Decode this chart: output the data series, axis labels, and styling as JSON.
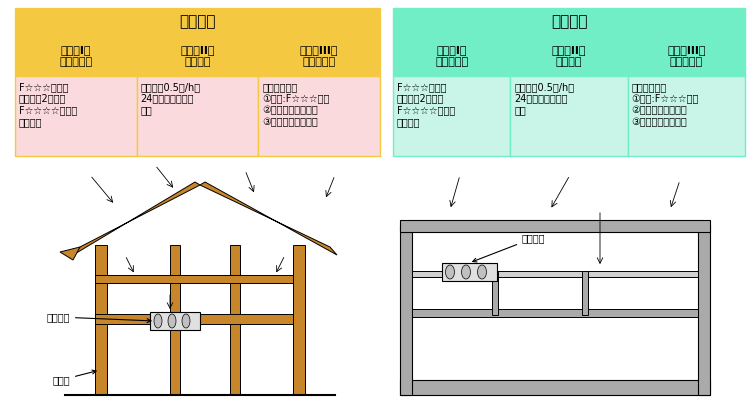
{
  "bg_color": "#ffffff",
  "left_table": {
    "title": "戸建住宅",
    "title_bg": "#F5C842",
    "header_bg": "#F5C842",
    "content_bg": "#FADADD",
    "border_color": "#F5C842",
    "headers": [
      "（対策I）\n内装仕上げ",
      "（対策II）\n換気設備",
      "（対策III）\n天井裏など"
    ],
    "contents": [
      "F☆☆☆の場合\n床面積の2倍まで\nF☆☆☆☆の場合\n制限なし",
      "換気回数0.5回/hの\n24時間換気設備を\n設置",
      "次のいずれか\n①建材:F☆☆☆以上\n②気密層、通気止め\n③天井裏などを換気"
    ]
  },
  "right_table": {
    "title": "集合住宅",
    "title_bg": "#72EEC7",
    "header_bg": "#72EEC7",
    "content_bg": "#C8F5E8",
    "border_color": "#72EEC7",
    "headers": [
      "（対策I）\n内装仕上げ",
      "（対策II）\n換気設備",
      "（対策III）\n天井裏など"
    ],
    "contents": [
      "F☆☆☆の場合\n床面積の2倍まで\nF☆☆☆☆の場合\n制限なし",
      "換気回数0.5回/hの\n24時間換気設備を\n設置",
      "次のいずれか\n①建材:F☆☆☆以上\n②気密層、通気止め\n③天井裏などを換気"
    ]
  },
  "wood_color": "#C8862A",
  "wall_color": "#D2B48C",
  "concrete_color": "#AAAAAA",
  "line_color": "#000000",
  "text_fontsize": 7,
  "header_fontsize": 8,
  "title_fontsize": 11
}
